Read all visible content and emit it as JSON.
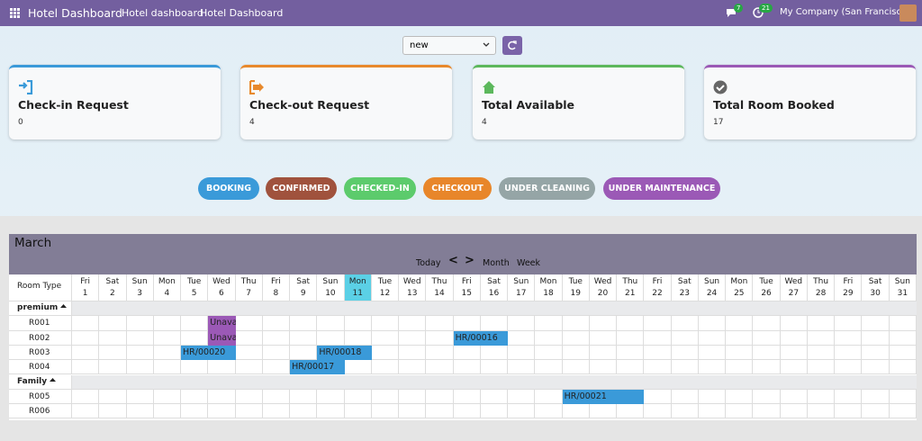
{
  "navbar": {
    "app_name": "Hotel Dashboard",
    "menu": [
      "Hotel dashboard",
      "Hotel Dashboard"
    ],
    "messages_badge": 7,
    "activities_badge": 21,
    "company": "My Company (San Francisco)"
  },
  "filter": {
    "selected": "new"
  },
  "cards": [
    {
      "title": "Check-in Request",
      "value": 0,
      "color": "#3a9ad9"
    },
    {
      "title": "Check-out Request",
      "value": 4,
      "color": "#e8892c"
    },
    {
      "title": "Total Available",
      "value": 4,
      "color": "#5cb85c"
    },
    {
      "title": "Total Room Booked",
      "value": 17,
      "color": "#9b59b6"
    }
  ],
  "legend": [
    {
      "label": "BOOKING",
      "color": "#3a9ad9"
    },
    {
      "label": "CONFIRMED",
      "color": "#a0523d"
    },
    {
      "label": "CHECKED-IN",
      "color": "#5ccb6c"
    },
    {
      "label": "CHECKOUT",
      "color": "#e8862a"
    },
    {
      "label": "UNDER CLEANING",
      "color": "#95a5a6"
    },
    {
      "label": "UNDER MAINTENANCE",
      "color": "#9b59b6"
    }
  ],
  "calendar": {
    "month": "March",
    "nav": {
      "today": "Today",
      "prev": "<",
      "next": ">",
      "month": "Month",
      "week": "Week"
    },
    "room_type_header": "Room Type",
    "highlighted_day": 11,
    "days": [
      {
        "weekday": "Fri",
        "day": 1
      },
      {
        "weekday": "Sat",
        "day": 2
      },
      {
        "weekday": "Sun",
        "day": 3
      },
      {
        "weekday": "Mon",
        "day": 4
      },
      {
        "weekday": "Tue",
        "day": 5
      },
      {
        "weekday": "Wed",
        "day": 6
      },
      {
        "weekday": "Thu",
        "day": 7
      },
      {
        "weekday": "Fri",
        "day": 8
      },
      {
        "weekday": "Sat",
        "day": 9
      },
      {
        "weekday": "Sun",
        "day": 10
      },
      {
        "weekday": "Mon",
        "day": 11
      },
      {
        "weekday": "Tue",
        "day": 12
      },
      {
        "weekday": "Wed",
        "day": 13
      },
      {
        "weekday": "Thu",
        "day": 14
      },
      {
        "weekday": "Fri",
        "day": 15
      },
      {
        "weekday": "Sat",
        "day": 16
      },
      {
        "weekday": "Sun",
        "day": 17
      },
      {
        "weekday": "Mon",
        "day": 18
      },
      {
        "weekday": "Tue",
        "day": 19
      },
      {
        "weekday": "Wed",
        "day": 20
      },
      {
        "weekday": "Thu",
        "day": 21
      },
      {
        "weekday": "Fri",
        "day": 22
      },
      {
        "weekday": "Sat",
        "day": 23
      },
      {
        "weekday": "Sun",
        "day": 24
      },
      {
        "weekday": "Mon",
        "day": 25
      },
      {
        "weekday": "Tue",
        "day": 26
      },
      {
        "weekday": "Wed",
        "day": 27
      },
      {
        "weekday": "Thu",
        "day": 28
      },
      {
        "weekday": "Fri",
        "day": 29
      },
      {
        "weekday": "Sat",
        "day": 30
      },
      {
        "weekday": "Sun",
        "day": 31
      }
    ],
    "groups": [
      {
        "name": "premium",
        "rooms": [
          {
            "name": "R001",
            "bookings": [
              {
                "label": "Unavail",
                "from": 6,
                "to": 6,
                "color": "#9b59b6"
              }
            ]
          },
          {
            "name": "R002",
            "bookings": [
              {
                "label": "Unavail",
                "from": 6,
                "to": 6,
                "color": "#9b59b6"
              },
              {
                "label": "HR/00016",
                "from": 15,
                "to": 16,
                "color": "#3a9ad9"
              }
            ]
          },
          {
            "name": "R003",
            "bookings": [
              {
                "label": "HR/00020",
                "from": 5,
                "to": 6,
                "color": "#3a9ad9"
              },
              {
                "label": "HR/00018",
                "from": 10,
                "to": 11,
                "color": "#3a9ad9"
              }
            ]
          },
          {
            "name": "R004",
            "bookings": [
              {
                "label": "HR/00017",
                "from": 9,
                "to": 10,
                "color": "#3a9ad9"
              }
            ]
          }
        ]
      },
      {
        "name": "Family",
        "rooms": [
          {
            "name": "R005",
            "bookings": [
              {
                "label": "HR/00021",
                "from": 19,
                "to": 21,
                "color": "#3a9ad9"
              }
            ]
          },
          {
            "name": "R006",
            "bookings": []
          }
        ]
      }
    ]
  }
}
